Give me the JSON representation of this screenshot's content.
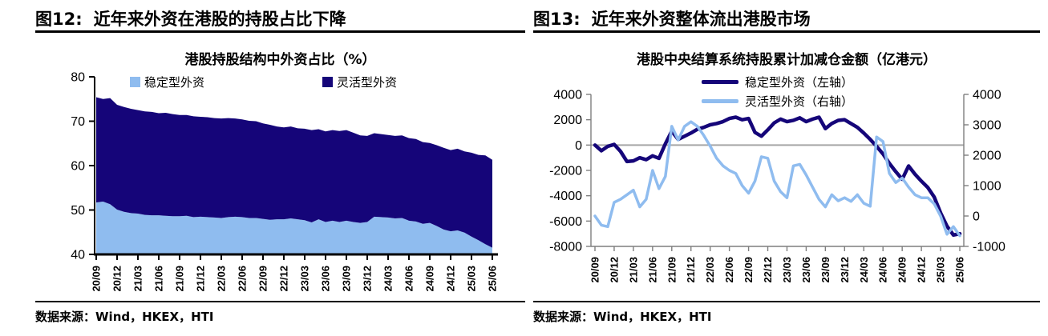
{
  "figures": [
    {
      "header_label": "图12:",
      "header_title": "近年来外资在港股的持股占比下降",
      "source_prefix": "数据来源：",
      "source_text": "Wind，HKEX，HTI"
    },
    {
      "header_label": "图13:",
      "header_title": "近年来外资整体流出港股市场",
      "source_prefix": "数据来源：",
      "source_text": "Wind，HKEX，HTI"
    }
  ],
  "colors": {
    "dark_navy": "#150579",
    "light_blue": "#8FBCEF",
    "zero_line": "#A6A6A6",
    "axis_black": "#000000",
    "axis_gray": "#7F7F7F"
  },
  "chart_data": [
    {
      "type": "area",
      "stacked": true,
      "title": "港股持股结构中外资占比（%）",
      "xlabel": "",
      "ylabel": "",
      "ylim": [
        40,
        80
      ],
      "y_ticks": [
        80,
        70,
        60,
        50,
        40
      ],
      "grid": false,
      "legend_position": "top-inside",
      "x_tick_labels": [
        "20/09",
        "20/12",
        "21/03",
        "21/06",
        "21/09",
        "21/12",
        "22/03",
        "22/06",
        "22/09",
        "22/12",
        "23/03",
        "23/06",
        "23/09",
        "23/12",
        "24/03",
        "24/06",
        "24/09",
        "24/12",
        "25/03",
        "25/06"
      ],
      "x_monthly_span": [
        "2020-09",
        "2025-06"
      ],
      "series": [
        {
          "name": "稳定型外资",
          "color": "#8FBCEF",
          "values": [
            51.7,
            51.9,
            51.3,
            50.1,
            49.6,
            49.3,
            49.2,
            48.9,
            48.8,
            48.8,
            48.7,
            48.6,
            48.6,
            48.7,
            48.4,
            48.5,
            48.4,
            48.3,
            48.2,
            48.4,
            48.5,
            48.4,
            48.2,
            48.2,
            48.0,
            47.8,
            47.9,
            47.9,
            48.1,
            47.9,
            47.7,
            47.2,
            47.9,
            47.3,
            47.6,
            47.3,
            47.6,
            47.3,
            47.1,
            47.3,
            48.5,
            48.4,
            48.3,
            48.1,
            48.2,
            47.6,
            47.4,
            46.9,
            47.1,
            46.4,
            45.6,
            45.2,
            45.4,
            44.9,
            44.0,
            43.2,
            42.3,
            41.5
          ]
        },
        {
          "name": "灵活型外资",
          "color": "#150579",
          "values": [
            23.7,
            23.1,
            23.9,
            23.6,
            23.6,
            23.5,
            23.3,
            23.3,
            23.3,
            23.0,
            23.2,
            23.0,
            22.8,
            22.7,
            22.7,
            22.5,
            22.5,
            22.4,
            22.4,
            22.3,
            22.1,
            22.0,
            21.9,
            21.8,
            21.5,
            21.4,
            20.9,
            20.7,
            20.7,
            20.5,
            20.6,
            20.8,
            20.3,
            20.4,
            20.4,
            20.5,
            20.4,
            20.1,
            19.7,
            19.4,
            18.8,
            18.7,
            18.6,
            18.6,
            18.6,
            18.6,
            18.6,
            18.4,
            18.0,
            18.2,
            18.4,
            18.3,
            18.4,
            18.3,
            18.9,
            19.2,
            20.0,
            19.8
          ]
        }
      ]
    },
    {
      "type": "line",
      "dual_axis": true,
      "title": "港股中央结算系统持股累计加减仓金额（亿港元）",
      "xlabel": "",
      "left_ylim": [
        -8000,
        4000
      ],
      "left_y_ticks": [
        4000,
        2000,
        0,
        -2000,
        -4000,
        -6000,
        -8000
      ],
      "right_ylim": [
        -1000,
        4000
      ],
      "right_y_ticks": [
        4000,
        3000,
        2000,
        1000,
        0,
        -1000
      ],
      "zero_line": true,
      "grid": false,
      "legend_position": "top-inside",
      "x_tick_labels": [
        "20/09",
        "20/12",
        "21/03",
        "21/06",
        "21/09",
        "21/12",
        "22/03",
        "22/06",
        "22/09",
        "22/12",
        "23/03",
        "23/06",
        "23/09",
        "23/12",
        "24/03",
        "24/06",
        "24/09",
        "24/12",
        "25/03",
        "25/06"
      ],
      "x_monthly_span": [
        "2020-09",
        "2025-06"
      ],
      "series": [
        {
          "name": "稳定型外资（左轴）",
          "axis": "left",
          "color": "#150579",
          "values": [
            0,
            -450,
            -100,
            50,
            -500,
            -1300,
            -1250,
            -1000,
            -1150,
            -850,
            -1050,
            100,
            1100,
            450,
            700,
            950,
            1250,
            1400,
            1600,
            1700,
            1850,
            2100,
            2200,
            2000,
            2100,
            1000,
            700,
            1200,
            1750,
            2050,
            1850,
            1950,
            2150,
            1850,
            2050,
            2200,
            1300,
            1700,
            1950,
            2000,
            1700,
            1400,
            950,
            450,
            -100,
            -700,
            -1450,
            -2100,
            -2700,
            -1650,
            -2300,
            -2850,
            -3350,
            -4100,
            -5350,
            -6400,
            -7100,
            -7000
          ]
        },
        {
          "name": "灵活型外资（右轴）",
          "axis": "right",
          "color": "#8FBCEF",
          "values": [
            0,
            -300,
            -350,
            450,
            550,
            700,
            850,
            300,
            550,
            1500,
            900,
            1300,
            2950,
            2500,
            2950,
            3100,
            2950,
            2650,
            2300,
            1900,
            1650,
            1500,
            1400,
            1000,
            750,
            1150,
            1950,
            1900,
            1150,
            800,
            600,
            1650,
            1700,
            1350,
            950,
            550,
            300,
            700,
            500,
            600,
            480,
            700,
            420,
            320,
            2600,
            2450,
            1400,
            1100,
            1250,
            950,
            700,
            600,
            600,
            400,
            0,
            -600,
            -350,
            -650
          ]
        }
      ]
    }
  ]
}
